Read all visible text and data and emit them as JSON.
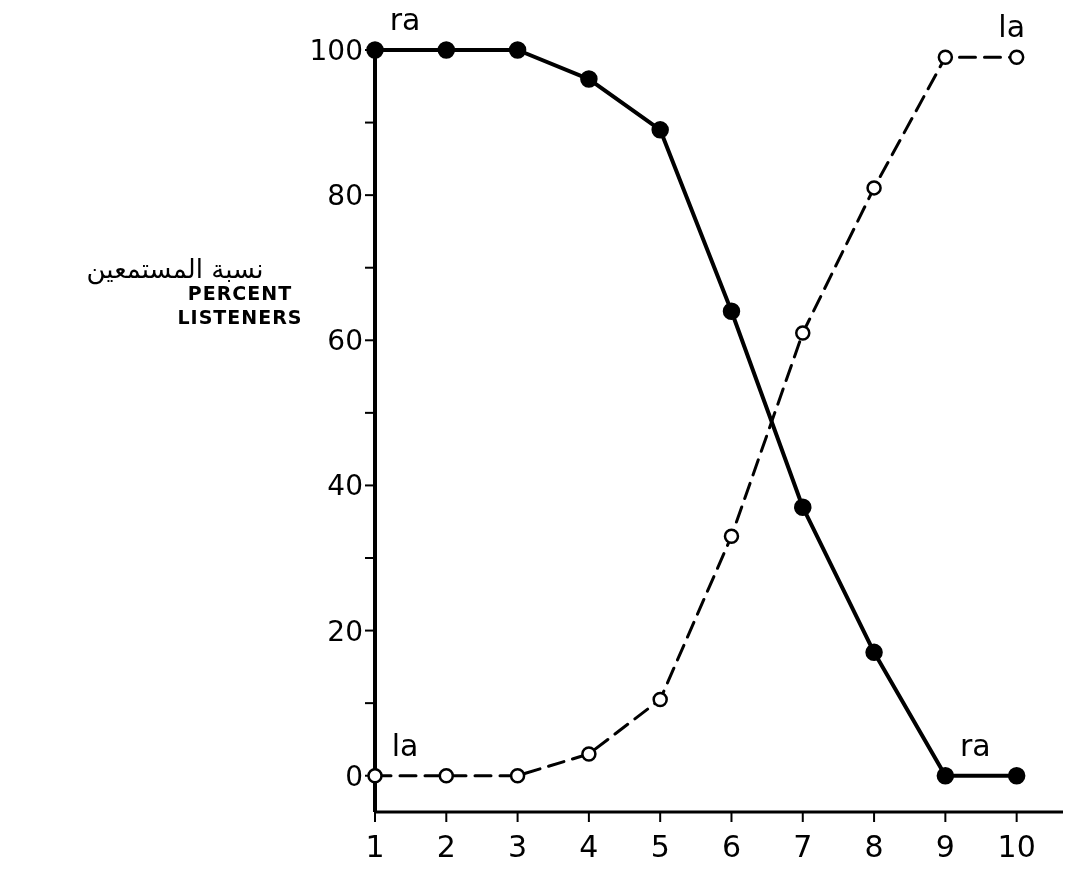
{
  "chart_data": {
    "type": "line",
    "ylabel": "PERCENT LISTENERS",
    "x": [
      1,
      2,
      3,
      4,
      5,
      6,
      7,
      8,
      9,
      10
    ],
    "series": [
      {
        "color": "#000000",
        "line_style": "solid",
        "values": [
          100,
          100,
          100,
          96,
          89,
          64,
          37,
          17,
          0,
          0
        ]
      },
      {
        "color": "#000000",
        "line_style": "dashed",
        "values": [
          0,
          0,
          0,
          3,
          10.5,
          33,
          61,
          81,
          99,
          99
        ]
      }
    ],
    "marker": "circle",
    "xlim": [
      1,
      10.65
    ],
    "xticks": [
      1,
      2,
      3,
      4,
      5,
      6,
      7,
      8,
      9,
      10
    ],
    "ylim": [
      -5,
      100
    ],
    "yticks": [
      0,
      {
        "value": 10,
        "label": null
      },
      20,
      {
        "value": 30,
        "label": null
      },
      40,
      {
        "value": 50,
        "label": null
      },
      60,
      {
        "value": 70,
        "label": null
      },
      80,
      {
        "value": 90,
        "label": null
      },
      100
    ],
    "grid": false,
    "annotations": [
      "نسبة المستمعين",
      {
        "text": "ra",
        "x": 1,
        "y": 100
      },
      {
        "text": "la",
        "x": 10,
        "y": 99
      },
      {
        "text": "la",
        "x": 1,
        "y": 0
      },
      {
        "text": "ra",
        "x": 9,
        "y": 0
      }
    ]
  }
}
